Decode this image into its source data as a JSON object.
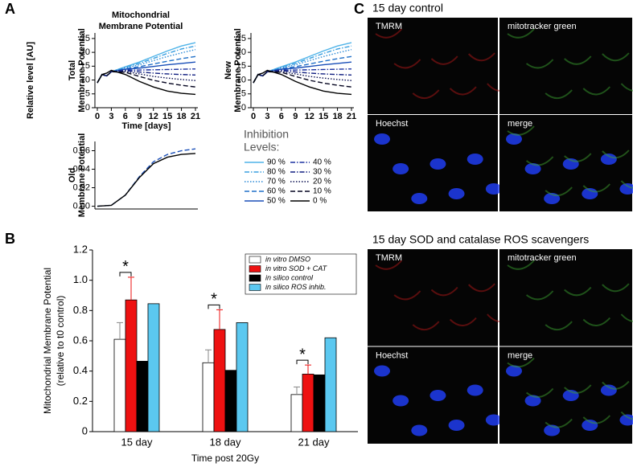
{
  "figure": {
    "panel_labels": [
      "A",
      "B",
      "C"
    ],
    "shared_ylabel": "Relative level [AU]",
    "micrographs": [
      {
        "title": "15 day control",
        "channels": [
          "TMRM",
          "mitotracker green",
          "Hoechst",
          "merge"
        ]
      },
      {
        "title": "15 day SOD and catalase ROS scavengers",
        "channels": [
          "TMRM",
          "mitotracker green",
          "Hoechst",
          "merge"
        ]
      }
    ]
  },
  "chart_data": [
    {
      "type": "line",
      "title": [
        "Mitochondrial",
        "Membrane Potential"
      ],
      "ylabel": [
        "Total",
        "Membrane Potential"
      ],
      "xlabel": "Time [days]",
      "legend_title": [
        "Inhibition",
        "Levels:"
      ],
      "x": [
        0,
        1,
        2,
        3,
        6,
        9,
        12,
        15,
        18,
        21
      ],
      "xlim": [
        0,
        21
      ],
      "xticks": [
        0,
        3,
        6,
        9,
        12,
        15,
        18,
        21
      ],
      "ylim": [
        0,
        27
      ],
      "yticks": [
        0,
        5,
        10,
        15,
        20,
        25
      ],
      "series": [
        {
          "name": "90 %",
          "color": "#4fb3e8",
          "style": "solid",
          "values": [
            9,
            12,
            11.5,
            13,
            14.8,
            16.5,
            18.5,
            20.5,
            22.3,
            23.5
          ]
        },
        {
          "name": "80 %",
          "color": "#3a9fe0",
          "style": "dashdot",
          "values": [
            9,
            12,
            11.5,
            13,
            14.6,
            16,
            17.8,
            19.6,
            21.2,
            22.3
          ]
        },
        {
          "name": "70 %",
          "color": "#2c8ad6",
          "style": "dotted",
          "values": [
            9,
            12,
            11.5,
            13,
            14.4,
            15.5,
            17,
            18.5,
            19.8,
            21
          ]
        },
        {
          "name": "60 %",
          "color": "#2070c8",
          "style": "dashed",
          "values": [
            9,
            12,
            11.5,
            13,
            14.1,
            14.8,
            15.8,
            16.8,
            17.7,
            18.5
          ]
        },
        {
          "name": "50 %",
          "color": "#1a4fb8",
          "style": "solid",
          "values": [
            9,
            12,
            11.5,
            13,
            13.9,
            14.3,
            14.9,
            15.5,
            16,
            16.5
          ]
        },
        {
          "name": "40 %",
          "color": "#1a30a0",
          "style": "dashdot",
          "values": [
            9,
            12,
            11.5,
            13,
            13.6,
            13.6,
            13.7,
            13.8,
            13.9,
            14
          ]
        },
        {
          "name": "30 %",
          "color": "#101e80",
          "style": "dashdot",
          "values": [
            9,
            12,
            11.5,
            13,
            13.4,
            12.9,
            12.5,
            12.2,
            12,
            11.8
          ]
        },
        {
          "name": "20 %",
          "color": "#0a0f50",
          "style": "dotted",
          "values": [
            9,
            12,
            11.5,
            13,
            13.1,
            12.2,
            11.3,
            10.7,
            10.2,
            9.8
          ]
        },
        {
          "name": "10 %",
          "color": "#050520",
          "style": "dashed",
          "values": [
            9,
            12,
            11.5,
            13,
            12.8,
            11.3,
            9.9,
            8.9,
            8.1,
            7.5
          ]
        },
        {
          "name": "0 %",
          "color": "#000000",
          "style": "solid",
          "values": [
            9,
            12,
            12.5,
            13.5,
            12,
            9.5,
            7.5,
            6,
            5.2,
            4.8
          ]
        }
      ]
    },
    {
      "type": "line",
      "ylabel": [
        "New",
        "Membrane Potential"
      ],
      "x": [
        0,
        1,
        2,
        3,
        6,
        9,
        12,
        15,
        18,
        21
      ],
      "xlim": [
        0,
        21
      ],
      "xticks": [
        0,
        3,
        6,
        9,
        12,
        15,
        18,
        21
      ],
      "ylim": [
        0,
        27
      ],
      "yticks": [
        0,
        5,
        10,
        15,
        20,
        25
      ],
      "series": [
        {
          "color": "#4fb3e8",
          "style": "solid",
          "values": [
            9,
            12,
            11.5,
            13,
            14.8,
            16.5,
            18.5,
            20.5,
            22.3,
            23.5
          ]
        },
        {
          "color": "#3a9fe0",
          "style": "dashdot",
          "values": [
            9,
            12,
            11.5,
            13,
            14.6,
            16,
            17.8,
            19.6,
            21.2,
            22.3
          ]
        },
        {
          "color": "#2c8ad6",
          "style": "dotted",
          "values": [
            9,
            12,
            11.5,
            13,
            14.4,
            15.5,
            17,
            18.5,
            19.8,
            21
          ]
        },
        {
          "color": "#2070c8",
          "style": "dashed",
          "values": [
            9,
            12,
            11.5,
            13,
            14.1,
            14.8,
            15.8,
            16.8,
            17.7,
            18.5
          ]
        },
        {
          "color": "#1a4fb8",
          "style": "solid",
          "values": [
            9,
            12,
            11.5,
            13,
            13.9,
            14.3,
            14.9,
            15.5,
            16,
            16.5
          ]
        },
        {
          "color": "#1a30a0",
          "style": "dashdot",
          "values": [
            9,
            12,
            11.5,
            13,
            13.6,
            13.6,
            13.7,
            13.8,
            13.9,
            14
          ]
        },
        {
          "color": "#101e80",
          "style": "dashdot",
          "values": [
            9,
            12,
            11.5,
            13,
            13.4,
            12.9,
            12.5,
            12.2,
            12,
            11.8
          ]
        },
        {
          "color": "#0a0f50",
          "style": "dotted",
          "values": [
            9,
            12,
            11.5,
            13,
            13.1,
            12.2,
            11.3,
            10.7,
            10.2,
            9.8
          ]
        },
        {
          "color": "#050520",
          "style": "dashed",
          "values": [
            9,
            12,
            11.5,
            13,
            12.8,
            11.3,
            9.9,
            8.9,
            8.1,
            7.5
          ]
        },
        {
          "color": "#000000",
          "style": "solid",
          "values": [
            9,
            12,
            12.5,
            13.5,
            12,
            9.5,
            7.5,
            6,
            5.2,
            4.8
          ]
        }
      ]
    },
    {
      "type": "line",
      "ylabel": [
        "Old",
        "Membrane Potential"
      ],
      "x": [
        0,
        3,
        6,
        9,
        12,
        15,
        18,
        21
      ],
      "xlim": [
        0,
        21
      ],
      "ylim": [
        -0.003,
        0.07
      ],
      "yticks": [
        {
          "value": 0,
          "label": "0.00"
        },
        0.02,
        0.04,
        0.06
      ],
      "series": [
        {
          "color": "#1a4fb8",
          "style": "dashed",
          "values": [
            0,
            0.001,
            0.012,
            0.032,
            0.048,
            0.056,
            0.06,
            0.062
          ]
        },
        {
          "color": "#000000",
          "style": "solid",
          "values": [
            0,
            0.001,
            0.012,
            0.031,
            0.046,
            0.053,
            0.056,
            0.057
          ]
        }
      ]
    },
    {
      "type": "bar",
      "ylabel": [
        "Mitochondrial Membrane Potential",
        "(relative to t0 control)"
      ],
      "xlabel": "Time post 20Gy",
      "categories": [
        "15 day",
        "18 day",
        "21 day"
      ],
      "ylim": [
        0,
        1.2
      ],
      "yticks": [
        0,
        0.2,
        0.4,
        0.6,
        0.8,
        {
          "value": 1,
          "label": "1.0"
        },
        1.2
      ],
      "annotations": [
        "*",
        "*",
        "*"
      ],
      "series": [
        {
          "name": "in vitro DMSO",
          "color": "#ffffff",
          "values": [
            0.61,
            0.455,
            0.245
          ],
          "errors": [
            0.11,
            0.085,
            0.05
          ]
        },
        {
          "name": "in vitro SOD + CAT",
          "color": "#ee1111",
          "values": [
            0.87,
            0.675,
            0.38
          ],
          "errors": [
            0.15,
            0.13,
            0.06
          ]
        },
        {
          "name": "in silico control",
          "color": "#000000",
          "values": [
            0.465,
            0.405,
            0.375
          ]
        },
        {
          "name": "in silico ROS inhib.",
          "color": "#5bc8f0",
          "values": [
            0.845,
            0.72,
            0.62
          ]
        }
      ]
    }
  ]
}
